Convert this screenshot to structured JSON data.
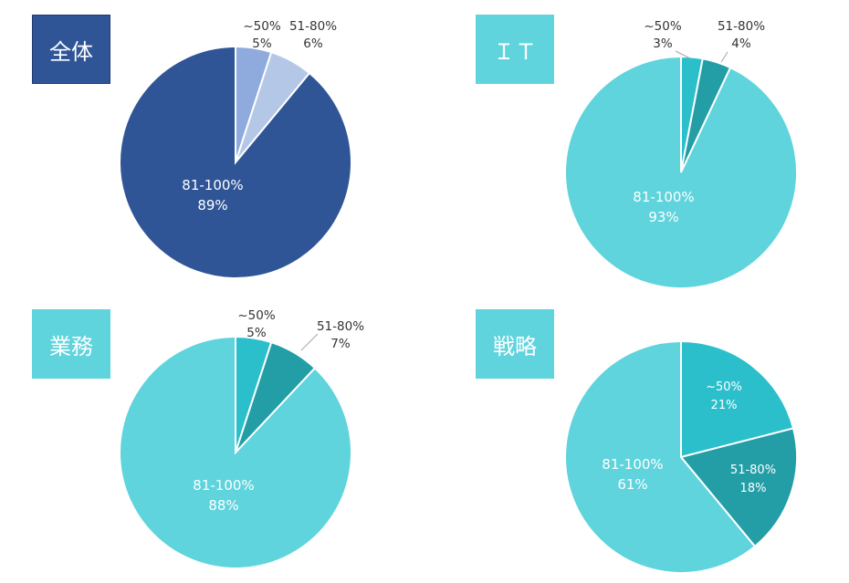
{
  "chart_data": [
    {
      "type": "pie",
      "title": "全体",
      "tag_style": "dark",
      "colors": [
        "#8faadc",
        "#b4c7e7",
        "#2f5597"
      ],
      "slices": [
        {
          "label": "~50%",
          "value": 5,
          "value_text": "5%"
        },
        {
          "label": "51-80%",
          "value": 6,
          "value_text": "6%"
        },
        {
          "label": "81-100%",
          "value": 89,
          "value_text": "89%"
        }
      ]
    },
    {
      "type": "pie",
      "title": "ＩＴ",
      "tag_style": "light",
      "colors": [
        "#2bbfcc",
        "#239ea6",
        "#5fd4dd"
      ],
      "slices": [
        {
          "label": "~50%",
          "value": 3,
          "value_text": "3%"
        },
        {
          "label": "51-80%",
          "value": 4,
          "value_text": "4%"
        },
        {
          "label": "81-100%",
          "value": 93,
          "value_text": "93%"
        }
      ]
    },
    {
      "type": "pie",
      "title": "業務",
      "tag_style": "light",
      "colors": [
        "#2bbfcc",
        "#239ea6",
        "#5fd4dd"
      ],
      "slices": [
        {
          "label": "~50%",
          "value": 5,
          "value_text": "5%"
        },
        {
          "label": "51-80%",
          "value": 7,
          "value_text": "7%"
        },
        {
          "label": "81-100%",
          "value": 88,
          "value_text": "88%"
        }
      ]
    },
    {
      "type": "pie",
      "title": "戦略",
      "tag_style": "light",
      "colors": [
        "#2bbfcc",
        "#239ea6",
        "#5fd4dd"
      ],
      "slices": [
        {
          "label": "~50%",
          "value": 21,
          "value_text": "21%"
        },
        {
          "label": "51-80%",
          "value": 18,
          "value_text": "18%"
        },
        {
          "label": "81-100%",
          "value": 61,
          "value_text": "61%"
        }
      ]
    }
  ]
}
